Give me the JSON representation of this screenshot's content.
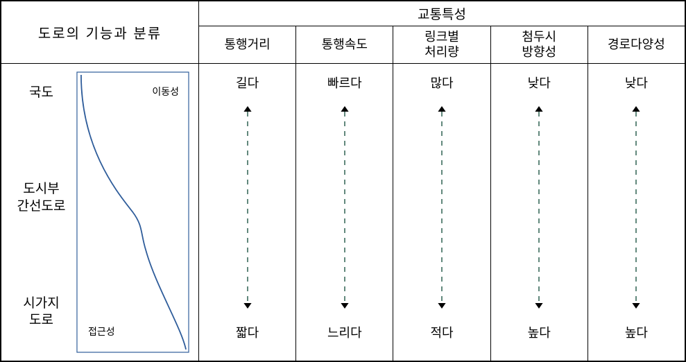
{
  "header": {
    "left_title": "도로의 기능과 분류",
    "right_title": "교통특성",
    "columns": [
      "통행거리",
      "통행속도",
      "링크별\n처리량",
      "첨두시\n방향성",
      "경로다양성"
    ]
  },
  "left_panel": {
    "row_labels": [
      "국도",
      "도시부\n간선도로",
      "시가지\n도로"
    ],
    "graph": {
      "top_label": "이동성",
      "bottom_label": "접근성",
      "border_color": "#2e5c9a",
      "curve_color": "#2e5c9a",
      "curve_width": 1.8,
      "box_border_width": 1.2
    }
  },
  "characteristics": [
    {
      "top": "길다",
      "bottom": "짧다",
      "arrow_color": "#3a6b5c"
    },
    {
      "top": "빠르다",
      "bottom": "느리다",
      "arrow_color": "#3a6b5c"
    },
    {
      "top": "많다",
      "bottom": "적다",
      "arrow_color": "#3a6b5c"
    },
    {
      "top": "낮다",
      "bottom": "높다",
      "arrow_color": "#3a6b5c"
    },
    {
      "top": "낮다",
      "bottom": "높다",
      "arrow_color": "#3a6b5c"
    }
  ],
  "style": {
    "background": "#ffffff",
    "border_color": "#000000",
    "font_color": "#000000",
    "arrow_dash": "7,7",
    "arrow_head_size": 8,
    "body_font_size": 18
  }
}
